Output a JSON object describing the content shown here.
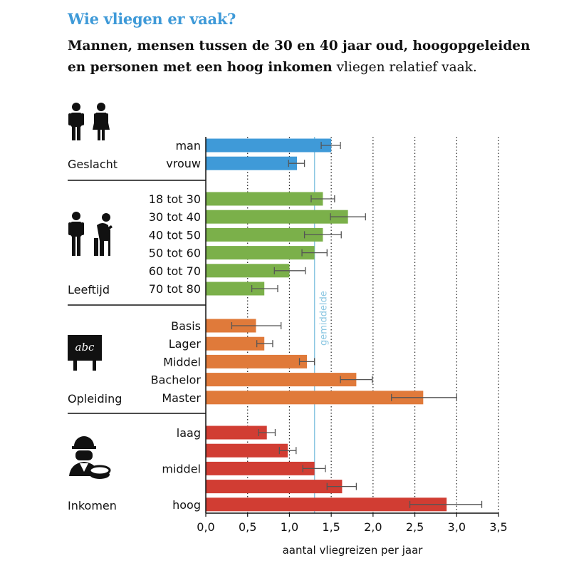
{
  "title": "Wie vliegen er vaak?",
  "subtitle": {
    "bold": "Mannen, mensen tussen de 30 en 40 jaar oud, hoogopgeleiden en personen met een hoog inkomen",
    "regular": " vliegen relatief vaak."
  },
  "colors": {
    "Geslacht": "#3f9ad8",
    "Leeftijd": "#7bb04a",
    "Opleiding": "#e07a3a",
    "Inkomen": "#d13d33",
    "average_line": "#8cc7e2",
    "error_bar": "#555555"
  },
  "chart_data": {
    "type": "bar",
    "orientation": "horizontal",
    "xlabel": "aantal vliegreizen per jaar",
    "xlim": [
      0,
      3.5
    ],
    "xticks": [
      "0,0",
      "0,5",
      "1,0",
      "1,5",
      "2,0",
      "2,5",
      "3,0",
      "3,5"
    ],
    "grid": "vertical dotted",
    "average": {
      "value": 1.3,
      "label": "gemiddelde"
    },
    "groups": [
      {
        "name": "Geslacht",
        "icon": "people-icon",
        "bars": [
          {
            "label": "man",
            "value": 1.5,
            "err": [
              1.38,
              1.61
            ]
          },
          {
            "label": "vrouw",
            "value": 1.09,
            "err": [
              0.99,
              1.18
            ]
          }
        ]
      },
      {
        "name": "Leeftijd",
        "icon": "age-icon",
        "bars": [
          {
            "label": "18 tot 30",
            "value": 1.4,
            "err": [
              1.26,
              1.54
            ]
          },
          {
            "label": "30 tot 40",
            "value": 1.7,
            "err": [
              1.49,
              1.91
            ]
          },
          {
            "label": "40 tot 50",
            "value": 1.4,
            "err": [
              1.18,
              1.62
            ]
          },
          {
            "label": "50 tot 60",
            "value": 1.3,
            "err": [
              1.15,
              1.45
            ]
          },
          {
            "label": "60 tot 70",
            "value": 1.0,
            "err": [
              0.82,
              1.19
            ]
          },
          {
            "label": "70 tot 80",
            "value": 0.7,
            "err": [
              0.55,
              0.86
            ]
          }
        ]
      },
      {
        "name": "Opleiding",
        "icon": "school-icon",
        "bars": [
          {
            "label": "Basis",
            "value": 0.6,
            "err": [
              0.31,
              0.9
            ]
          },
          {
            "label": "Lager",
            "value": 0.7,
            "err": [
              0.61,
              0.8
            ]
          },
          {
            "label": "Middel",
            "value": 1.21,
            "err": [
              1.12,
              1.3
            ]
          },
          {
            "label": "Bachelor",
            "value": 1.8,
            "err": [
              1.61,
              1.99
            ]
          },
          {
            "label": "Master",
            "value": 2.6,
            "err": [
              2.22,
              3.0
            ]
          }
        ]
      },
      {
        "name": "Inkomen",
        "icon": "worker-icon",
        "bars": [
          {
            "label": "laag",
            "value": 0.73,
            "err": [
              0.63,
              0.83
            ]
          },
          {
            "label": "",
            "value": 0.98,
            "err": [
              0.88,
              1.08
            ]
          },
          {
            "label": "middel",
            "value": 1.3,
            "err": [
              1.16,
              1.43
            ]
          },
          {
            "label": "",
            "value": 1.63,
            "err": [
              1.45,
              1.8
            ]
          },
          {
            "label": "hoog",
            "value": 2.88,
            "err": [
              2.44,
              3.3
            ]
          }
        ]
      }
    ]
  }
}
